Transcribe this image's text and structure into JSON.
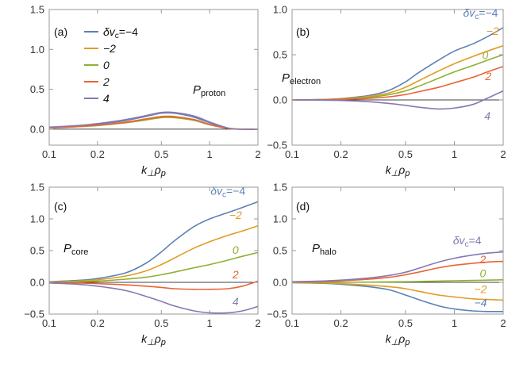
{
  "chart_data": [
    {
      "type": "line",
      "panel": "(a)",
      "quantity": "P",
      "quantity_sub": "proton",
      "xlabel": "k⊥ρp",
      "xscale": "log",
      "xlim": [
        0.1,
        2
      ],
      "ylim": [
        -0.2,
        1.5
      ],
      "xticks": [
        0.1,
        0.2,
        0.5,
        1,
        2
      ],
      "xtick_labels": [
        "0.1",
        "0.2",
        "0.5",
        "1",
        "2"
      ],
      "yticks": [
        0,
        0.5,
        1.0,
        1.5
      ],
      "ytick_labels": [
        "0.0",
        "0.5",
        "1.0",
        "1.5"
      ],
      "legend": {
        "position": "top-left",
        "entries": [
          {
            "label": "δv",
            "sub": "c",
            "value": "=−4"
          },
          {
            "label": "−2"
          },
          {
            "label": "0"
          },
          {
            "label": "2"
          },
          {
            "label": "4"
          }
        ]
      },
      "x": [
        0.1,
        0.15,
        0.2,
        0.3,
        0.4,
        0.5,
        0.6,
        0.8,
        1.0,
        1.3,
        1.6,
        2.0
      ],
      "series": [
        {
          "name": "δvc=−4",
          "color": "#5E81B5",
          "values": [
            0.02,
            0.04,
            0.06,
            0.11,
            0.16,
            0.2,
            0.2,
            0.15,
            0.08,
            0.01,
            0.0,
            0.0
          ]
        },
        {
          "name": "−2",
          "color": "#E19C24",
          "values": [
            0.02,
            0.035,
            0.05,
            0.09,
            0.13,
            0.16,
            0.16,
            0.12,
            0.06,
            0.01,
            0.0,
            0.0
          ]
        },
        {
          "name": "0",
          "color": "#8FB032",
          "values": [
            0.015,
            0.03,
            0.045,
            0.08,
            0.115,
            0.145,
            0.145,
            0.11,
            0.055,
            0.01,
            0.0,
            0.0
          ]
        },
        {
          "name": "2",
          "color": "#EB6235",
          "values": [
            0.018,
            0.033,
            0.05,
            0.088,
            0.125,
            0.155,
            0.155,
            0.12,
            0.06,
            0.01,
            0.0,
            0.0
          ]
        },
        {
          "name": "4",
          "color": "#8778B3",
          "values": [
            0.025,
            0.045,
            0.07,
            0.12,
            0.17,
            0.21,
            0.21,
            0.165,
            0.09,
            0.015,
            0.0,
            0.0
          ]
        }
      ],
      "curve_labels": []
    },
    {
      "type": "line",
      "panel": "(b)",
      "quantity": "P",
      "quantity_sub": "electron",
      "xlabel": "k⊥ρp",
      "xscale": "log",
      "xlim": [
        0.1,
        2
      ],
      "ylim": [
        -0.5,
        1.0
      ],
      "xticks": [
        0.1,
        0.2,
        0.5,
        1,
        2
      ],
      "xtick_labels": [
        "0.1",
        "0.2",
        "0.5",
        "1",
        "2"
      ],
      "yticks": [
        -0.5,
        0,
        0.5,
        1.0
      ],
      "ytick_labels": [
        "−0.5",
        "0.0",
        "0.5",
        "1.0"
      ],
      "x": [
        0.1,
        0.15,
        0.2,
        0.3,
        0.4,
        0.5,
        0.6,
        0.8,
        1.0,
        1.3,
        1.6,
        2.0
      ],
      "series": [
        {
          "name": "δvc=−4",
          "color": "#5E81B5",
          "values": [
            0.0,
            0.005,
            0.015,
            0.05,
            0.11,
            0.2,
            0.3,
            0.44,
            0.54,
            0.62,
            0.7,
            0.8
          ]
        },
        {
          "name": "−2",
          "color": "#E19C24",
          "values": [
            0.0,
            0.004,
            0.012,
            0.04,
            0.08,
            0.14,
            0.21,
            0.32,
            0.4,
            0.48,
            0.54,
            0.6
          ]
        },
        {
          "name": "0",
          "color": "#8FB032",
          "values": [
            0.0,
            0.003,
            0.01,
            0.03,
            0.06,
            0.1,
            0.15,
            0.24,
            0.31,
            0.38,
            0.44,
            0.5
          ]
        },
        {
          "name": "2",
          "color": "#EB6235",
          "values": [
            0.0,
            0.002,
            0.006,
            0.018,
            0.035,
            0.06,
            0.09,
            0.14,
            0.19,
            0.25,
            0.31,
            0.37
          ]
        },
        {
          "name": "4",
          "color": "#8778B3",
          "values": [
            0.0,
            -0.002,
            -0.006,
            -0.02,
            -0.04,
            -0.06,
            -0.08,
            -0.1,
            -0.09,
            -0.05,
            0.02,
            0.1
          ]
        }
      ],
      "curve_labels": [
        {
          "text": "δv",
          "sub": "c",
          "value": "=−4",
          "series": 0,
          "at": [
            1.45,
            0.92
          ]
        },
        {
          "text": "−2",
          "series": 1,
          "at": [
            1.72,
            0.72
          ]
        },
        {
          "text": "0",
          "series": 2,
          "at": [
            1.55,
            0.45
          ]
        },
        {
          "text": "2",
          "series": 3,
          "at": [
            1.62,
            0.22
          ]
        },
        {
          "text": "4",
          "series": 4,
          "at": [
            1.6,
            -0.22
          ]
        }
      ]
    },
    {
      "type": "line",
      "panel": "(c)",
      "quantity": "P",
      "quantity_sub": "core",
      "xlabel": "k⊥ρp",
      "xscale": "log",
      "xlim": [
        0.1,
        2
      ],
      "ylim": [
        -0.5,
        1.5
      ],
      "xticks": [
        0.1,
        0.2,
        0.5,
        1,
        2
      ],
      "xtick_labels": [
        "0.1",
        "0.2",
        "0.5",
        "1",
        "2"
      ],
      "yticks": [
        -0.5,
        0,
        0.5,
        1.0,
        1.5
      ],
      "ytick_labels": [
        "−0.5",
        "0.0",
        "0.5",
        "1.0",
        "1.5"
      ],
      "x": [
        0.1,
        0.15,
        0.2,
        0.3,
        0.4,
        0.5,
        0.6,
        0.8,
        1.0,
        1.3,
        1.6,
        2.0
      ],
      "series": [
        {
          "name": "δvc=−4",
          "color": "#5E81B5",
          "values": [
            0.01,
            0.03,
            0.06,
            0.15,
            0.3,
            0.48,
            0.65,
            0.88,
            1.0,
            1.1,
            1.18,
            1.27
          ]
        },
        {
          "name": "−2",
          "color": "#E19C24",
          "values": [
            0.005,
            0.02,
            0.04,
            0.1,
            0.18,
            0.28,
            0.38,
            0.54,
            0.64,
            0.74,
            0.81,
            0.89
          ]
        },
        {
          "name": "0",
          "color": "#8FB032",
          "values": [
            0.003,
            0.01,
            0.02,
            0.05,
            0.08,
            0.12,
            0.16,
            0.23,
            0.28,
            0.35,
            0.41,
            0.47
          ]
        },
        {
          "name": "2",
          "color": "#EB6235",
          "values": [
            -0.003,
            -0.01,
            -0.02,
            -0.04,
            -0.06,
            -0.08,
            -0.1,
            -0.11,
            -0.11,
            -0.1,
            -0.06,
            0.02
          ]
        },
        {
          "name": "4",
          "color": "#8778B3",
          "values": [
            -0.01,
            -0.03,
            -0.06,
            -0.13,
            -0.22,
            -0.3,
            -0.37,
            -0.45,
            -0.48,
            -0.48,
            -0.45,
            -0.38
          ]
        }
      ],
      "curve_labels": [
        {
          "text": "δv",
          "sub": "c",
          "value": "=−4",
          "series": 0,
          "at": [
            1.3,
            1.38
          ]
        },
        {
          "text": "−2",
          "series": 1,
          "at": [
            1.45,
            1.0
          ]
        },
        {
          "text": "0",
          "series": 2,
          "at": [
            1.45,
            0.45
          ]
        },
        {
          "text": "2",
          "series": 3,
          "at": [
            1.45,
            0.06
          ]
        },
        {
          "text": "4",
          "series": 4,
          "at": [
            1.45,
            -0.36
          ]
        }
      ]
    },
    {
      "type": "line",
      "panel": "(d)",
      "quantity": "P",
      "quantity_sub": "halo",
      "xlabel": "k⊥ρp",
      "xscale": "log",
      "xlim": [
        0.1,
        2
      ],
      "ylim": [
        -0.5,
        1.5
      ],
      "xticks": [
        0.1,
        0.2,
        0.5,
        1,
        2
      ],
      "xtick_labels": [
        "0.1",
        "0.2",
        "0.5",
        "1",
        "2"
      ],
      "yticks": [
        -0.5,
        0,
        0.5,
        1.0,
        1.5
      ],
      "ytick_labels": [
        "−0.5",
        "0.0",
        "0.5",
        "1.0",
        "1.5"
      ],
      "x": [
        0.1,
        0.15,
        0.2,
        0.3,
        0.4,
        0.5,
        0.6,
        0.8,
        1.0,
        1.3,
        1.6,
        2.0
      ],
      "series": [
        {
          "name": "δvc=−4",
          "color": "#5E81B5",
          "values": [
            -0.005,
            -0.015,
            -0.03,
            -0.07,
            -0.12,
            -0.2,
            -0.27,
            -0.37,
            -0.42,
            -0.45,
            -0.46,
            -0.46
          ]
        },
        {
          "name": "−2",
          "color": "#E19C24",
          "values": [
            -0.003,
            -0.01,
            -0.02,
            -0.045,
            -0.07,
            -0.1,
            -0.14,
            -0.2,
            -0.23,
            -0.26,
            -0.27,
            -0.28
          ]
        },
        {
          "name": "0",
          "color": "#8FB032",
          "values": [
            0.0,
            0.001,
            0.002,
            0.004,
            0.007,
            0.01,
            0.013,
            0.02,
            0.025,
            0.03,
            0.035,
            0.04
          ]
        },
        {
          "name": "2",
          "color": "#EB6235",
          "values": [
            0.005,
            0.012,
            0.025,
            0.05,
            0.08,
            0.12,
            0.16,
            0.23,
            0.27,
            0.3,
            0.32,
            0.33
          ]
        },
        {
          "name": "4",
          "color": "#8778B3",
          "values": [
            0.01,
            0.02,
            0.035,
            0.07,
            0.11,
            0.16,
            0.22,
            0.32,
            0.38,
            0.43,
            0.46,
            0.48
          ]
        }
      ],
      "curve_labels": [
        {
          "text": "δv",
          "sub": "c",
          "value": "=4",
          "series": 4,
          "at": [
            1.2,
            0.6
          ]
        },
        {
          "text": "2",
          "series": 3,
          "at": [
            1.5,
            0.3
          ]
        },
        {
          "text": "0",
          "series": 2,
          "at": [
            1.5,
            0.08
          ]
        },
        {
          "text": "−2",
          "series": 1,
          "at": [
            1.45,
            -0.17
          ]
        },
        {
          "text": "−4",
          "series": 0,
          "at": [
            1.45,
            -0.38
          ]
        }
      ]
    }
  ]
}
